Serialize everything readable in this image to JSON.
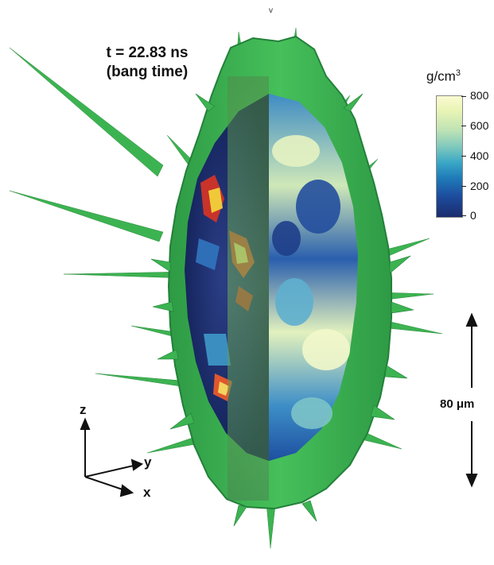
{
  "figure": {
    "time_line": "t = 22.83 ns",
    "time_note": "(bang time)",
    "colorbar_unit": "g/cm",
    "colorbar_unit_exp": "3",
    "colorbar_ticks": [
      "800",
      "600",
      "400",
      "200",
      "0"
    ],
    "colorbar_colors": [
      "#fbfbd2",
      "#bfe3b4",
      "#3aa7c6",
      "#1d4fa0",
      "#1b2b6e"
    ],
    "scale_bar_label": "80 μm",
    "axes": {
      "z": "z",
      "y": "y",
      "x": "x"
    },
    "top_mark": "v",
    "shell_color": "#3cb351"
  }
}
